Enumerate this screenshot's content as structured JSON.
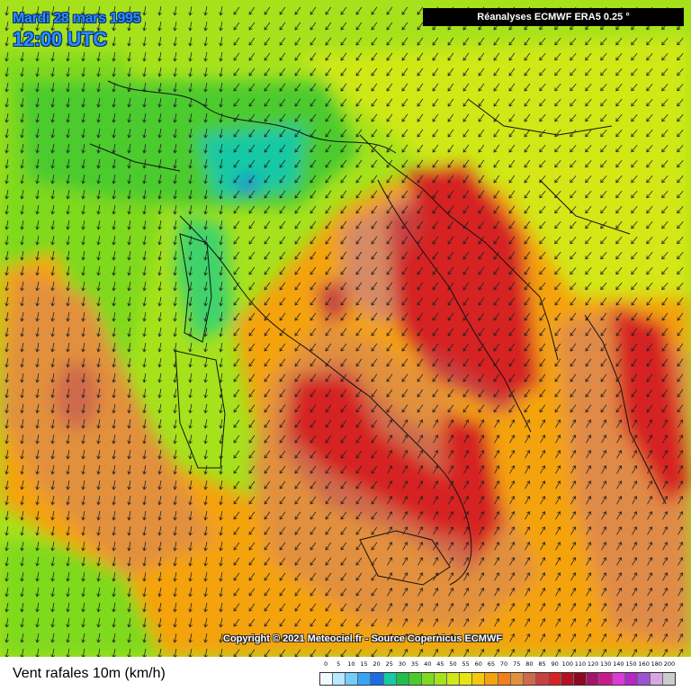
{
  "map": {
    "date_label": "Mardi 28 mars 1995",
    "time_label": "12:00 UTC",
    "source_label": "Réanalyses ECMWF ERA5 0.25 °",
    "copyright": "Copyright © 2021 Meteociel.fr - Source Copernicus ECMWF",
    "variable_title": "Vent rafales 10m (km/h)",
    "units": "km/h",
    "region": "Italy / Adriatic / Balkans"
  },
  "legend": {
    "labels": [
      "0",
      "5",
      "10",
      "15",
      "20",
      "25",
      "30",
      "35",
      "40",
      "45",
      "50",
      "55",
      "60",
      "65",
      "70",
      "75",
      "80",
      "85",
      "90",
      "100",
      "110",
      "120",
      "130",
      "140",
      "150",
      "160",
      "180",
      "200"
    ],
    "colors": [
      "#f2f9ff",
      "#b6e8ff",
      "#72cdfb",
      "#3aa3f3",
      "#1a6de3",
      "#17c9a4",
      "#1fbf4c",
      "#4ccb2d",
      "#7fd91f",
      "#a6e21c",
      "#cfe816",
      "#e9e411",
      "#f5c80f",
      "#f4a30f",
      "#f2801a",
      "#e2903e",
      "#cf6b4c",
      "#c84040",
      "#d62424",
      "#b50f22",
      "#8c0a20",
      "#a3156b",
      "#c91a8c",
      "#da3bd6",
      "#b327c4",
      "#9e53d1",
      "#d7a6e3",
      "#cccccc"
    ]
  }
}
